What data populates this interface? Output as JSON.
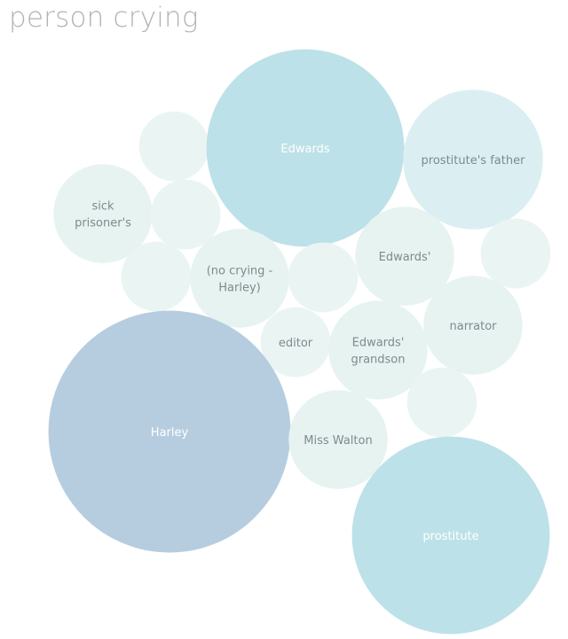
{
  "title": "person crying",
  "chart_data": {
    "type": "bubble",
    "title": "person crying",
    "series": [
      {
        "lines": [
          ""
        ],
        "color": "#eaf5f3",
        "value": 6
      },
      {
        "lines": [
          "Edwards"
        ],
        "color": "#bde1e8",
        "value": 48
      },
      {
        "lines": [
          "prostitute's father"
        ],
        "color": "#dbeff2",
        "value": 24
      },
      {
        "lines": [
          "sick",
          "prisoner's"
        ],
        "color": "#e6f3f1",
        "value": 12
      },
      {
        "lines": [
          ""
        ],
        "color": "#eaf5f3",
        "value": 6
      },
      {
        "lines": [
          "Edwards'"
        ],
        "color": "#e6f3f1",
        "value": 12
      },
      {
        "lines": [
          ""
        ],
        "color": "#eaf5f3",
        "value": 6
      },
      {
        "lines": [
          ""
        ],
        "color": "#eaf5f3",
        "value": 6
      },
      {
        "lines": [
          "(no crying -",
          "Harley)"
        ],
        "color": "#e6f3f1",
        "value": 12
      },
      {
        "lines": [
          ""
        ],
        "color": "#eaf5f3",
        "value": 6
      },
      {
        "lines": [
          "narrator"
        ],
        "color": "#e6f3f1",
        "value": 12
      },
      {
        "lines": [
          "editor"
        ],
        "color": "#eaf5f3",
        "value": 6
      },
      {
        "lines": [
          "Edwards'",
          "grandson"
        ],
        "color": "#e6f3f1",
        "value": 12
      },
      {
        "lines": [
          "Harley"
        ],
        "color": "#b6cde0",
        "value": 72
      },
      {
        "lines": [
          ""
        ],
        "color": "#eaf5f3",
        "value": 6
      },
      {
        "lines": [
          "Miss Walton"
        ],
        "color": "#e6f3f1",
        "value": 12
      },
      {
        "lines": [
          "prostitute"
        ],
        "color": "#bde1e8",
        "value": 48
      }
    ]
  }
}
